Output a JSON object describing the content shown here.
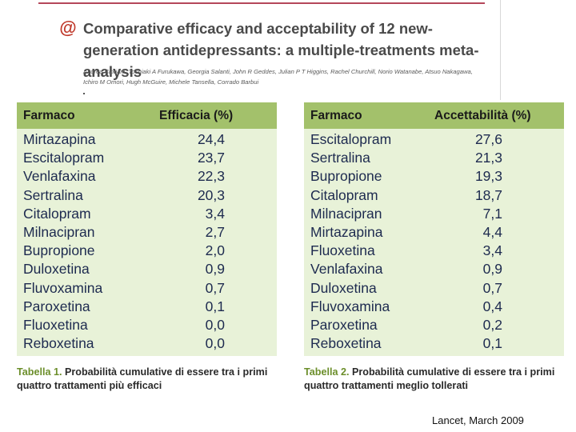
{
  "header": {
    "logo_glyph": "@",
    "title": "Comparative efficacy and acceptability of 12 new-generation antidepressants: a multiple-treatments meta-analysis",
    "authors": "Andrea Cipriani, Toshiaki A Furukawa, Georgia Salanti, John R Geddes, Julian P T Higgins, Rachel Churchill, Norio Watanabe, Atsuo Nakagawa, Ichiro M Omori, Hugh McGuire, Michele Tansella, Corrado Barbui"
  },
  "table1": {
    "col_drug": "Farmaco",
    "col_value": "Efficacia (%)",
    "rows": [
      {
        "drug": "Mirtazapina",
        "value": "24,4"
      },
      {
        "drug": "Escitalopram",
        "value": "23,7"
      },
      {
        "drug": "Venlafaxina",
        "value": "22,3"
      },
      {
        "drug": "Sertralina",
        "value": "20,3"
      },
      {
        "drug": "Citalopram",
        "value": "3,4"
      },
      {
        "drug": "Milnacipran",
        "value": "2,7"
      },
      {
        "drug": "Bupropione",
        "value": "2,0"
      },
      {
        "drug": "Duloxetina",
        "value": "0,9"
      },
      {
        "drug": "Fluvoxamina",
        "value": "0,7"
      },
      {
        "drug": "Paroxetina",
        "value": "0,1"
      },
      {
        "drug": "Fluoxetina",
        "value": "0,0"
      },
      {
        "drug": "Reboxetina",
        "value": "0,0"
      }
    ],
    "caption_label": "Tabella 1.",
    "caption_text": "Probabilità cumulative di essere tra i primi quattro trattamenti più efficaci"
  },
  "table2": {
    "col_drug": "Farmaco",
    "col_value": "Accettabilità (%)",
    "rows": [
      {
        "drug": "Escitalopram",
        "value": "27,6"
      },
      {
        "drug": "Sertralina",
        "value": "21,3"
      },
      {
        "drug": "Bupropione",
        "value": "19,3"
      },
      {
        "drug": "Citalopram",
        "value": "18,7"
      },
      {
        "drug": "Milnacipran",
        "value": "7,1"
      },
      {
        "drug": "Mirtazapina",
        "value": "4,4"
      },
      {
        "drug": "Fluoxetina",
        "value": "3,4"
      },
      {
        "drug": "Venlafaxina",
        "value": "0,9"
      },
      {
        "drug": "Duloxetina",
        "value": "0,7"
      },
      {
        "drug": "Fluvoxamina",
        "value": "0,4"
      },
      {
        "drug": "Paroxetina",
        "value": "0,2"
      },
      {
        "drug": "Reboxetina",
        "value": "0,1"
      }
    ],
    "caption_label": "Tabella 2.",
    "caption_text": "Probabilità cumulative di essere tra i primi quattro trattamenti meglio tollerati"
  },
  "source": "Lancet, March 2009",
  "colors": {
    "header_fill": "#a3c16b",
    "body_fill": "#e8f2d8",
    "accent": "#c0392b",
    "caption_label": "#6b8e2a"
  }
}
